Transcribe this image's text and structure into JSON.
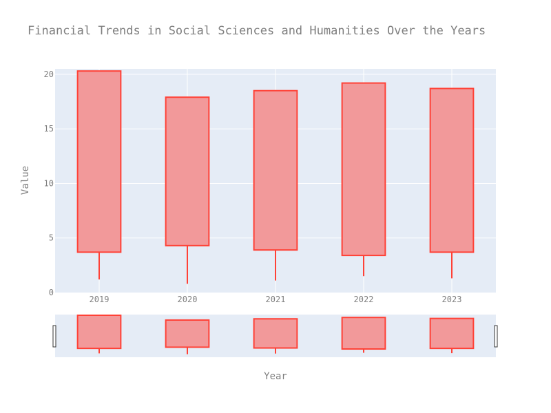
{
  "chart_data": {
    "type": "candlestick",
    "title": "Financial Trends in Social Sciences and Humanities Over the Years",
    "xlabel": "Year",
    "ylabel": "Value",
    "categories": [
      "2019",
      "2020",
      "2021",
      "2022",
      "2023"
    ],
    "open": [
      3.7,
      4.3,
      3.9,
      3.4,
      3.7
    ],
    "high": [
      20.3,
      17.9,
      18.5,
      19.2,
      18.7
    ],
    "low": [
      1.2,
      0.8,
      1.1,
      1.5,
      1.3
    ],
    "close": [
      20.3,
      17.9,
      18.5,
      19.2,
      18.7
    ],
    "ylim": [
      0,
      20.5
    ],
    "yticks": [
      0,
      5,
      10,
      15,
      20
    ],
    "grid": true,
    "range_slider": true,
    "colors": {
      "body_fill": "#f2999a",
      "body_line": "#ff4136",
      "plot_bg": "#e5ecf6",
      "grid": "#ffffff",
      "text": "#7f7f7f"
    }
  }
}
